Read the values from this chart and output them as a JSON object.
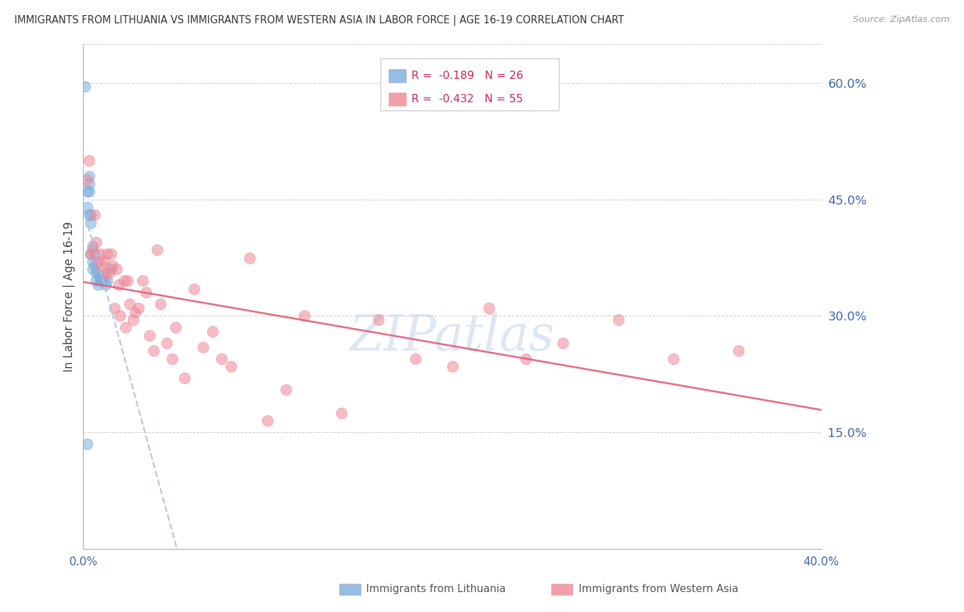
{
  "title": "IMMIGRANTS FROM LITHUANIA VS IMMIGRANTS FROM WESTERN ASIA IN LABOR FORCE | AGE 16-19 CORRELATION CHART",
  "source": "Source: ZipAtlas.com",
  "ylabel": "In Labor Force | Age 16-19",
  "xmin": 0.0,
  "xmax": 0.4,
  "ymin": 0.0,
  "ymax": 0.65,
  "yticks": [
    0.15,
    0.3,
    0.45,
    0.6
  ],
  "ytick_labels": [
    "15.0%",
    "30.0%",
    "45.0%",
    "60.0%"
  ],
  "xticks": [
    0.0,
    0.05,
    0.1,
    0.15,
    0.2,
    0.25,
    0.3,
    0.35,
    0.4
  ],
  "xtick_labels": [
    "0.0%",
    "",
    "",
    "",
    "",
    "",
    "",
    "",
    "40.0%"
  ],
  "grid_color": "#cccccc",
  "watermark": "ZIPatlas",
  "color_lithuania": "#7aaedd",
  "color_western_asia": "#f08898",
  "label_lithuania": "Immigrants from Lithuania",
  "label_western_asia": "Immigrants from Western Asia",
  "lithuania_x": [
    0.001,
    0.002,
    0.002,
    0.003,
    0.003,
    0.003,
    0.003,
    0.004,
    0.004,
    0.004,
    0.005,
    0.005,
    0.005,
    0.006,
    0.006,
    0.007,
    0.007,
    0.008,
    0.008,
    0.009,
    0.01,
    0.011,
    0.012,
    0.013,
    0.015,
    0.002
  ],
  "lithuania_y": [
    0.595,
    0.44,
    0.46,
    0.43,
    0.48,
    0.47,
    0.46,
    0.43,
    0.42,
    0.38,
    0.39,
    0.37,
    0.36,
    0.38,
    0.365,
    0.355,
    0.345,
    0.355,
    0.34,
    0.35,
    0.345,
    0.35,
    0.34,
    0.345,
    0.36,
    0.135
  ],
  "western_asia_x": [
    0.002,
    0.003,
    0.004,
    0.005,
    0.006,
    0.007,
    0.008,
    0.009,
    0.01,
    0.011,
    0.012,
    0.013,
    0.014,
    0.015,
    0.016,
    0.017,
    0.018,
    0.019,
    0.02,
    0.022,
    0.023,
    0.024,
    0.025,
    0.027,
    0.028,
    0.03,
    0.032,
    0.034,
    0.036,
    0.038,
    0.04,
    0.042,
    0.045,
    0.048,
    0.05,
    0.055,
    0.06,
    0.065,
    0.07,
    0.075,
    0.08,
    0.09,
    0.1,
    0.11,
    0.12,
    0.14,
    0.16,
    0.18,
    0.2,
    0.22,
    0.24,
    0.26,
    0.29,
    0.32,
    0.355
  ],
  "western_asia_y": [
    0.475,
    0.5,
    0.38,
    0.385,
    0.43,
    0.395,
    0.37,
    0.38,
    0.365,
    0.37,
    0.355,
    0.38,
    0.355,
    0.38,
    0.365,
    0.31,
    0.36,
    0.34,
    0.3,
    0.345,
    0.285,
    0.345,
    0.315,
    0.295,
    0.305,
    0.31,
    0.345,
    0.33,
    0.275,
    0.255,
    0.385,
    0.315,
    0.265,
    0.245,
    0.285,
    0.22,
    0.335,
    0.26,
    0.28,
    0.245,
    0.235,
    0.375,
    0.165,
    0.205,
    0.3,
    0.175,
    0.295,
    0.245,
    0.235,
    0.31,
    0.245,
    0.265,
    0.295,
    0.245,
    0.255
  ]
}
